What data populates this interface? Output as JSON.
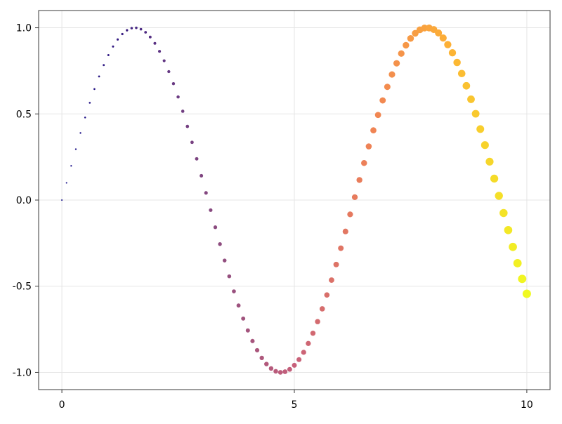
{
  "chart_data": {
    "type": "scatter",
    "title": "",
    "xlabel": "",
    "ylabel": "",
    "xlim": [
      -0.5,
      10.5
    ],
    "ylim": [
      -1.1,
      1.1
    ],
    "grid": true,
    "x_ticks": [
      0,
      5,
      10
    ],
    "x_tick_labels": [
      "0",
      "5",
      "10"
    ],
    "y_ticks": [
      -1.0,
      -0.5,
      0.0,
      0.5,
      1.0
    ],
    "y_tick_labels": [
      "-1.0",
      "-0.5",
      "0.0",
      "0.5",
      "1.0"
    ],
    "colormap": [
      "#0d0887",
      "#4c2a84",
      "#8c4c7f",
      "#c7607a",
      "#f08355",
      "#fdb135",
      "#f0f921"
    ],
    "marker_size_range": [
      1,
      6
    ],
    "series": [
      {
        "x": [
          0.0,
          0.1,
          0.2,
          0.3,
          0.4,
          0.5,
          0.6,
          0.7,
          0.8,
          0.9,
          1.0,
          1.1,
          1.2,
          1.3,
          1.4,
          1.5,
          1.6,
          1.7,
          1.8,
          1.9,
          2.0,
          2.1,
          2.2,
          2.3,
          2.4,
          2.5,
          2.6,
          2.7,
          2.8,
          2.9,
          3.0,
          3.1,
          3.2,
          3.3,
          3.4,
          3.5,
          3.6,
          3.7,
          3.8,
          3.9,
          4.0,
          4.1,
          4.2,
          4.3,
          4.4,
          4.5,
          4.6,
          4.7,
          4.8,
          4.9,
          5.0,
          5.1,
          5.2,
          5.3,
          5.4,
          5.5,
          5.6,
          5.7,
          5.8,
          5.9,
          6.0,
          6.1,
          6.2,
          6.3,
          6.4,
          6.5,
          6.6,
          6.7,
          6.8,
          6.9,
          7.0,
          7.1,
          7.2,
          7.3,
          7.4,
          7.5,
          7.6,
          7.7,
          7.8,
          7.9,
          8.0,
          8.1,
          8.2,
          8.3,
          8.4,
          8.5,
          8.6,
          8.7,
          8.8,
          8.9,
          9.0,
          9.1,
          9.2,
          9.3,
          9.4,
          9.5,
          9.6,
          9.7,
          9.8,
          9.9,
          10.0
        ],
        "y": [
          0.0,
          0.0998,
          0.1987,
          0.2955,
          0.3894,
          0.4794,
          0.5646,
          0.6442,
          0.7174,
          0.7833,
          0.8415,
          0.8912,
          0.932,
          0.9636,
          0.9854,
          0.9975,
          0.9996,
          0.9917,
          0.9738,
          0.9463,
          0.9093,
          0.8632,
          0.8085,
          0.7457,
          0.6755,
          0.5985,
          0.5155,
          0.4274,
          0.335,
          0.2392,
          0.1411,
          0.0416,
          -0.0584,
          -0.1577,
          -0.2555,
          -0.3508,
          -0.4425,
          -0.5298,
          -0.6119,
          -0.6878,
          -0.7568,
          -0.8183,
          -0.8716,
          -0.9162,
          -0.9516,
          -0.9775,
          -0.9937,
          -0.9999,
          -0.9962,
          -0.9825,
          -0.9589,
          -0.9258,
          -0.8835,
          -0.8323,
          -0.7728,
          -0.7055,
          -0.6313,
          -0.5507,
          -0.4646,
          -0.3739,
          -0.2794,
          -0.1822,
          -0.0831,
          0.0168,
          0.1165,
          0.2151,
          0.3115,
          0.4048,
          0.4941,
          0.5784,
          0.657,
          0.729,
          0.7937,
          0.8504,
          0.8987,
          0.938,
          0.9679,
          0.9882,
          0.9985,
          0.9989,
          0.9894,
          0.9699,
          0.9407,
          0.9022,
          0.8546,
          0.7985,
          0.7344,
          0.663,
          0.5849,
          0.501,
          0.4121,
          0.319,
          0.2229,
          0.1245,
          0.0248,
          -0.0752,
          -0.1743,
          -0.2718,
          -0.3665,
          -0.4575,
          -0.544
        ]
      }
    ]
  }
}
